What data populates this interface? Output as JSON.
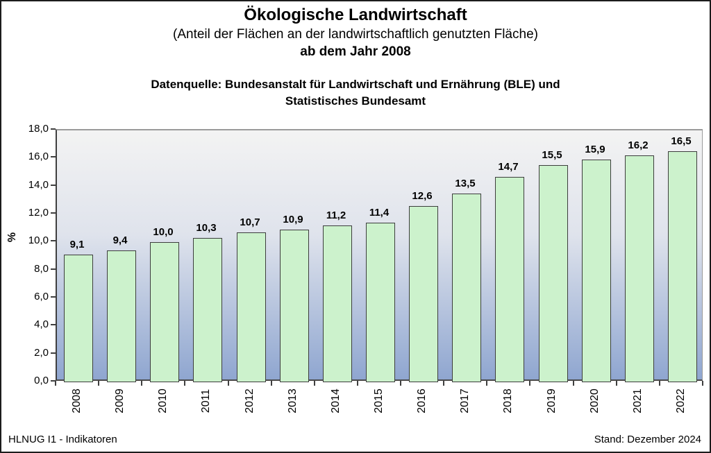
{
  "header": {
    "title": "Ökologische Landwirtschaft",
    "subtitle": "(Anteil der Flächen an der landwirtschaftlich genutzten Fläche)",
    "subtitle2": "ab dem Jahr 2008",
    "source_line1": "Datenquelle: Bundesanstalt für Landwirtschaft und Ernährung (BLE) und",
    "source_line2": "Statistisches Bundesamt"
  },
  "chart_data": {
    "type": "bar",
    "title": "Ökologische Landwirtschaft (Anteil der Flächen an der landwirtschaftlich genutzten Fläche) ab dem Jahr 2008",
    "categories": [
      "2008",
      "2009",
      "2010",
      "2011",
      "2012",
      "2013",
      "2014",
      "2015",
      "2016",
      "2017",
      "2018",
      "2019",
      "2020",
      "2021",
      "2022"
    ],
    "values": [
      9.1,
      9.4,
      10.0,
      10.3,
      10.7,
      10.9,
      11.2,
      11.4,
      12.6,
      13.5,
      14.7,
      15.5,
      15.9,
      16.2,
      16.5
    ],
    "value_labels": [
      "9,1",
      "9,4",
      "10,0",
      "10,3",
      "10,7",
      "10,9",
      "11,2",
      "11,4",
      "12,6",
      "13,5",
      "14,7",
      "15,5",
      "15,9",
      "16,2",
      "16,5"
    ],
    "xlabel": "",
    "ylabel": "%",
    "ylim": [
      0,
      18
    ],
    "ytick_step": 2,
    "ytick_labels": [
      "0,0",
      "2,0",
      "4,0",
      "6,0",
      "8,0",
      "10,0",
      "12,0",
      "14,0",
      "16,0",
      "18,0"
    ],
    "grid": false,
    "legend": false,
    "colors": {
      "bar_fill": "#ccf2cc",
      "bar_border": "#3c3c3c",
      "plot_bg_top": "#f3f3f3",
      "plot_bg_mid": "#dfe3ec",
      "plot_bg_bottom": "#8fa6d0",
      "value_label": "#000000"
    }
  },
  "footer": {
    "left": "HLNUG I1 - Indikatoren",
    "right": "Stand: Dezember 2024"
  }
}
